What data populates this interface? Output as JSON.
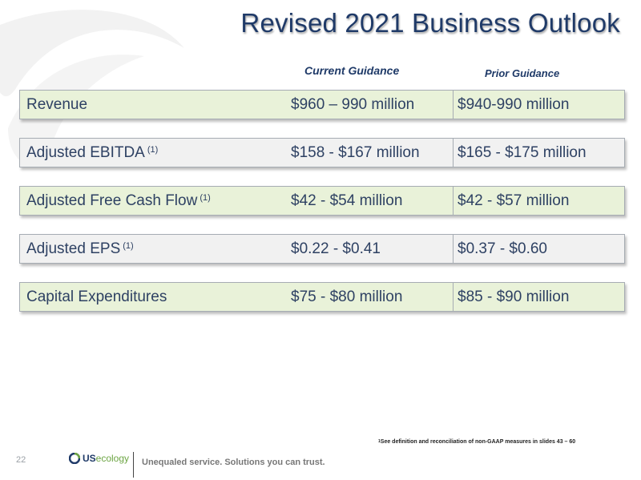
{
  "title": "Revised 2021 Business Outlook",
  "columns": {
    "current": "Current Guidance",
    "prior": "Prior Guidance"
  },
  "rows": [
    {
      "label": "Revenue",
      "note": "",
      "current": "$960 – 990 million",
      "prior": "$940-990 million"
    },
    {
      "label": "Adjusted EBITDA",
      "note": "(1)",
      "current": "$158 - $167 million",
      "prior": "$165 - $175 million"
    },
    {
      "label": "Adjusted Free Cash Flow",
      "note": "(1)",
      "current": "$42 - $54 million",
      "prior": "$42 - $57 million"
    },
    {
      "label": "Adjusted EPS",
      "note": "(1)",
      "current": "$0.22 - $0.41",
      "prior": "$0.37 - $0.60"
    },
    {
      "label": "Capital Expenditures",
      "note": "",
      "current": "$75 - $80 million",
      "prior": "$85 - $90 million"
    }
  ],
  "footnote": {
    "mark": "1",
    "text": "See definition and reconciliation of non-GAAP measures in slides 43 – 60"
  },
  "footer": {
    "page_number": "22",
    "logo_us": "US",
    "logo_ecology": "ecology",
    "tagline": "Unequaled service. Solutions you can trust."
  },
  "colors": {
    "title": "#1f3a68",
    "row_green": "#e9f2d9",
    "row_gray": "#f1f1f1",
    "logo_green": "#6da544"
  }
}
